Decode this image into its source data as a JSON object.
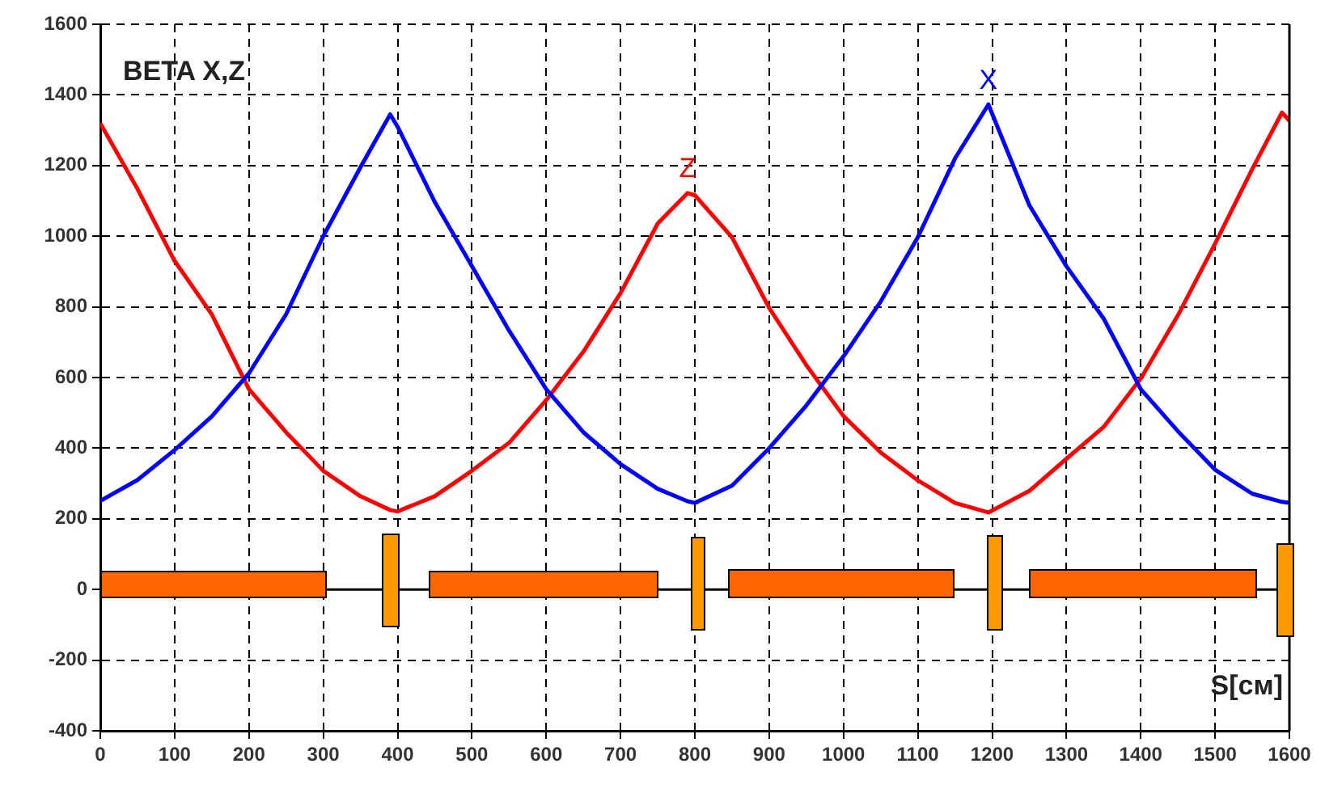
{
  "chart_data": {
    "type": "line",
    "title": "BETA X,Z",
    "xlabel": "S[см]",
    "x": [
      0,
      50,
      100,
      150,
      200,
      250,
      300,
      350,
      390,
      400,
      450,
      500,
      550,
      600,
      650,
      700,
      750,
      790,
      800,
      850,
      900,
      950,
      1000,
      1050,
      1100,
      1150,
      1195,
      1250,
      1300,
      1350,
      1400,
      1450,
      1500,
      1550,
      1590,
      1600
    ],
    "series": [
      {
        "color": "#0000ff",
        "values": [
          251,
          310,
          395,
          490,
          612,
          779,
          1000,
          1195,
          1345,
          1310,
          1097,
          915,
          733,
          567,
          445,
          355,
          285,
          250,
          245,
          294,
          400,
          521,
          660,
          815,
          997,
          1220,
          1373,
          1088,
          915,
          767,
          567,
          448,
          339,
          271,
          248,
          245
        ]
      },
      {
        "color": "#ff0000",
        "values": [
          1320,
          1134,
          930,
          779,
          567,
          445,
          336,
          264,
          225,
          221,
          264,
          336,
          415,
          536,
          673,
          839,
          1036,
          1122,
          1116,
          997,
          797,
          635,
          491,
          388,
          309,
          245,
          218,
          279,
          370,
          460,
          597,
          776,
          979,
          1190,
          1350,
          1327
        ]
      }
    ],
    "annotations": [
      {
        "text": "X",
        "x": 1195,
        "y": 1373
      },
      {
        "text": "Z",
        "x": 790,
        "y": 1122
      }
    ],
    "ref_lines": [
      {
        "axis": "y",
        "value": 0,
        "color": "#000000"
      }
    ],
    "xlim": [
      0,
      1600
    ],
    "xticks": [
      0,
      100,
      200,
      300,
      400,
      500,
      600,
      700,
      800,
      900,
      1000,
      1100,
      1200,
      1300,
      1400,
      1500,
      1600
    ],
    "ylim": [
      -400,
      1600
    ],
    "yticks": [
      -400,
      -200,
      0,
      200,
      400,
      600,
      800,
      1000,
      1200,
      1400,
      1600
    ],
    "grid": true,
    "legend": false,
    "marker": "none",
    "line_style": "solid"
  }
}
